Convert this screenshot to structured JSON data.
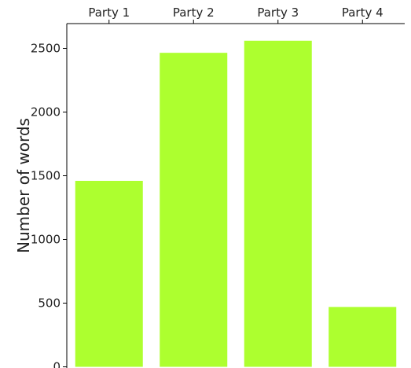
{
  "chart_data": {
    "type": "bar",
    "categories": [
      "Party 1",
      "Party 2",
      "Party 3",
      "Party 4"
    ],
    "values": [
      1460,
      2465,
      2560,
      470
    ],
    "title": "",
    "xlabel": "",
    "ylabel": "Number of words",
    "ylim": [
      0,
      2500
    ],
    "yticks": [
      0,
      500,
      1000,
      1500,
      2000,
      2500
    ],
    "x_axis_position": "top",
    "grid": false,
    "bar_color": "#adff2f"
  }
}
